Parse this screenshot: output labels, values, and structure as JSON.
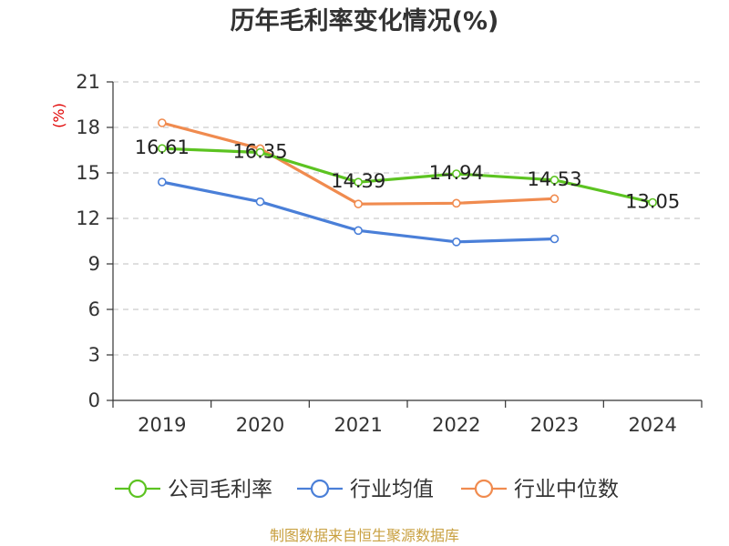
{
  "chart_data": {
    "type": "line",
    "title": "历年毛利率变化情况(%)",
    "ylabel": "(%)",
    "categories": [
      "2019",
      "2020",
      "2021",
      "2022",
      "2023",
      "2024"
    ],
    "ylim": [
      0,
      21
    ],
    "yticks": [
      0,
      3,
      6,
      9,
      12,
      15,
      18,
      21
    ],
    "grid": "horizontal-dashed",
    "legend_position": "bottom",
    "series": [
      {
        "name": "公司毛利率",
        "color": "#5cc321",
        "values": [
          16.61,
          16.35,
          14.39,
          14.94,
          14.53,
          13.05
        ],
        "labels": [
          "16.61",
          "16.35",
          "14.39",
          "14.94",
          "14.53",
          "13.05"
        ]
      },
      {
        "name": "行业均值",
        "color": "#4a7fd8",
        "values": [
          14.4,
          13.1,
          11.2,
          10.45,
          10.65,
          null
        ]
      },
      {
        "name": "行业中位数",
        "color": "#f08b4f",
        "values": [
          18.3,
          16.6,
          12.95,
          13.0,
          13.3,
          null
        ]
      }
    ]
  },
  "source": "制图数据来自恒生聚源数据库"
}
